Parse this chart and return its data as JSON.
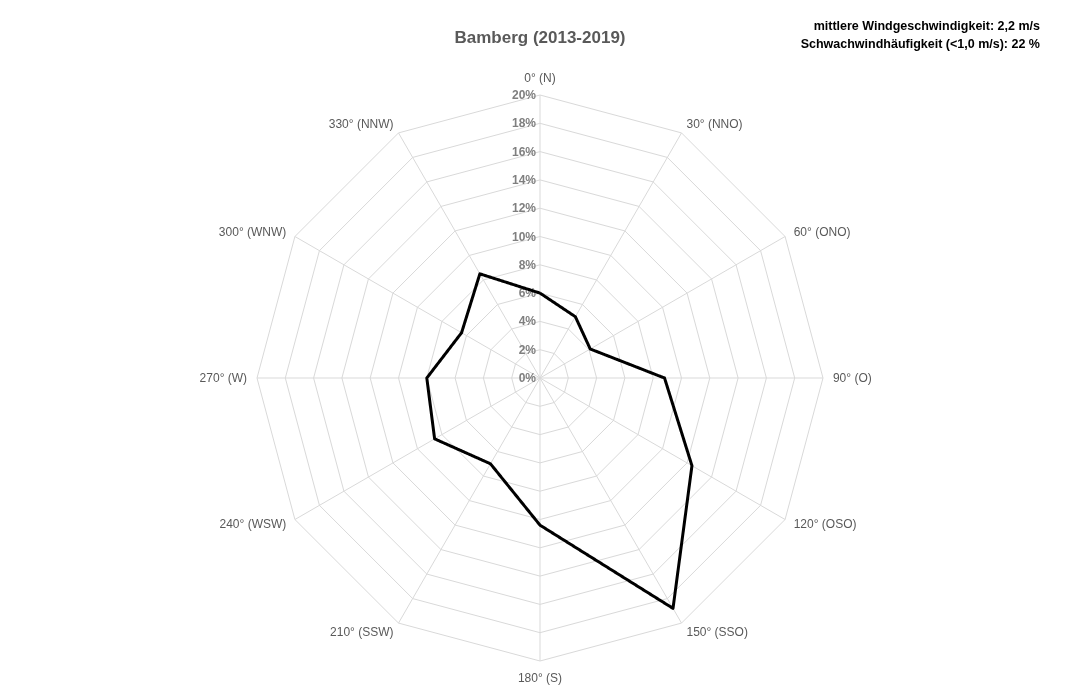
{
  "chart_data": {
    "type": "radar",
    "title": "Bamberg (2013-2019)",
    "annotations": [
      "mittlere Windgeschwindigkeit: 2,2 m/s",
      "Schwachwindhäufigkeit (<1,0 m/s): 22 %"
    ],
    "categories": [
      "0° (N)",
      "30° (NNO)",
      "60° (ONO)",
      "90° (O)",
      "120° (OSO)",
      "150° (SSO)",
      "180° (S)",
      "210° (SSW)",
      "240° (WSW)",
      "270° (W)",
      "300° (WNW)",
      "330° (NNW)"
    ],
    "series": [
      {
        "color": "#000000",
        "values": [
          6.0,
          5.0,
          4.1,
          8.8,
          12.4,
          18.8,
          10.4,
          7.0,
          8.6,
          8.0,
          6.4,
          8.5
        ]
      }
    ],
    "ylim": [
      0,
      20
    ],
    "yticks": [
      {
        "value": 0,
        "label": "0%"
      },
      {
        "value": 2,
        "label": "2%"
      },
      {
        "value": 4,
        "label": "4%"
      },
      {
        "value": 6,
        "label": "6%"
      },
      {
        "value": 8,
        "label": "8%"
      },
      {
        "value": 10,
        "label": "10%"
      },
      {
        "value": 12,
        "label": "12%"
      },
      {
        "value": 14,
        "label": "14%"
      },
      {
        "value": 16,
        "label": "16%"
      },
      {
        "value": 18,
        "label": "18%"
      },
      {
        "value": 20,
        "label": "20%"
      }
    ],
    "grid": true,
    "marker": "none",
    "line_style": "solid"
  }
}
